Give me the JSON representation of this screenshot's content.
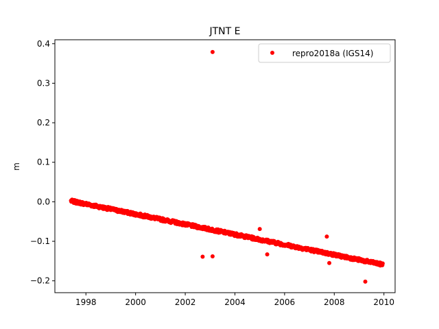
{
  "chart_data": {
    "type": "scatter",
    "title": "JTNT E",
    "xlabel": "",
    "ylabel": "m",
    "xlim": [
      1996.75,
      2010.45
    ],
    "ylim": [
      -0.23,
      0.41
    ],
    "x_ticks": [
      1998,
      2000,
      2002,
      2004,
      2006,
      2008,
      2010
    ],
    "y_ticks": [
      -0.2,
      -0.1,
      0.0,
      0.1,
      0.2,
      0.3,
      0.4
    ],
    "x_tick_labels": [
      "1998",
      "2000",
      "2002",
      "2004",
      "2006",
      "2008",
      "2010"
    ],
    "y_tick_labels": [
      "−0.2",
      "−0.1",
      "0.0",
      "0.1",
      "0.2",
      "0.3",
      "0.4"
    ],
    "grid": false,
    "legend_position": "top-right",
    "series": [
      {
        "name": "repro2018a (IGS14)",
        "color": "#ff0000",
        "marker": "circle",
        "trend": {
          "start": [
            1997.4,
            0.002
          ],
          "end": [
            2009.95,
            -0.159
          ],
          "noise": 0.004
        },
        "outliers": [
          [
            2003.1,
            0.379
          ],
          [
            2002.7,
            -0.139
          ],
          [
            2003.1,
            -0.138
          ],
          [
            2005.0,
            -0.069
          ],
          [
            2005.3,
            -0.133
          ],
          [
            2007.7,
            -0.088
          ],
          [
            2007.8,
            -0.155
          ],
          [
            2009.25,
            -0.202
          ]
        ]
      }
    ]
  }
}
